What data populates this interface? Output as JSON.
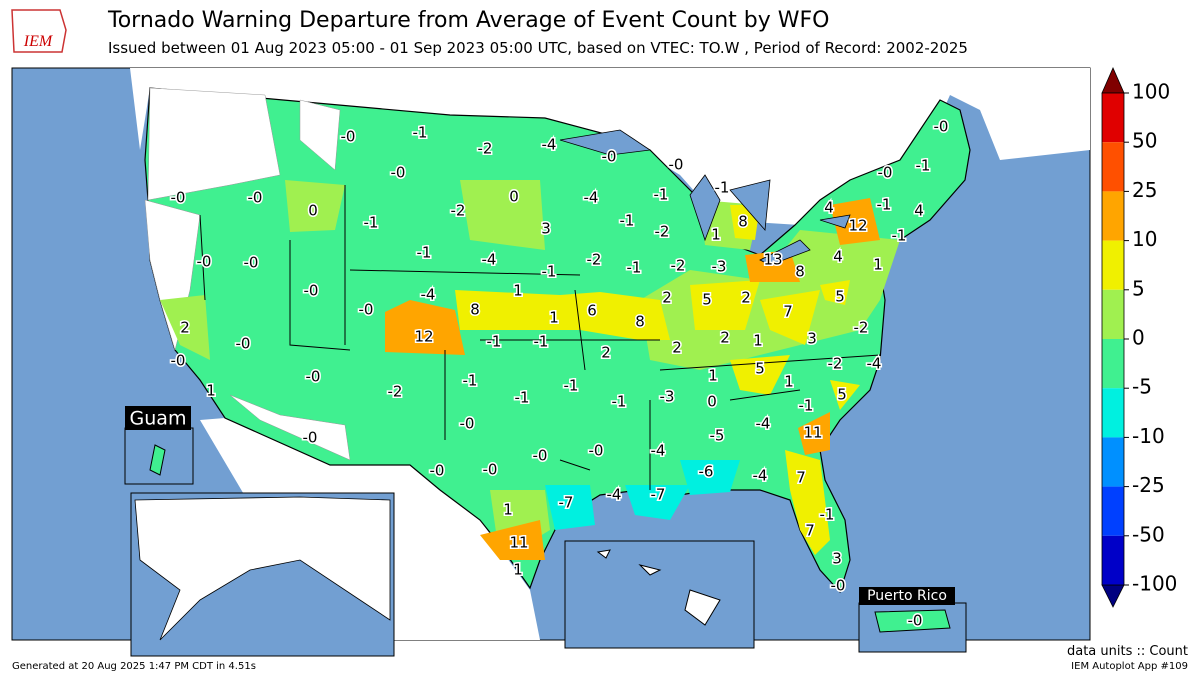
{
  "header": {
    "logo": "IEM",
    "title": "Tornado Warning Departure from Average of Event Count by WFO",
    "subtitle": "Issued between 01 Aug 2023 05:00 - 01 Sep 2023 05:00 UTC, based on VTEC: TO.W  , Period of Record: 2002-2025"
  },
  "insets": {
    "guam": "Guam",
    "puerto_rico": "Puerto Rico"
  },
  "wfo_labels": [
    "-0",
    "-1",
    "-2",
    "-4",
    "-0",
    "-0",
    "-0",
    "-0",
    "-0",
    "-0",
    "0",
    "-1",
    "-2",
    "0",
    "-4",
    "-1",
    "-1",
    "-0",
    "-1",
    "-1",
    "4",
    "12",
    "4",
    "-1",
    "8",
    "1",
    "-1",
    "-2",
    "3",
    "-0",
    "-0",
    "-1",
    "-4",
    "-1",
    "-2",
    "-1",
    "-2",
    "-3",
    "13",
    "8",
    "4",
    "1",
    "-0",
    "1",
    "-4",
    "8",
    "1",
    "-0",
    "12",
    "-1",
    "-1",
    "6",
    "8",
    "2",
    "5",
    "2",
    "7",
    "5",
    "-2",
    "2",
    "-0",
    "-0",
    "1",
    "2",
    "2",
    "2",
    "1",
    "3",
    "-2",
    "-4",
    "-0",
    "-2",
    "-1",
    "-1",
    "-1",
    "1",
    "5",
    "1",
    "5",
    "-3",
    "-1",
    "0",
    "-1",
    "-0",
    "-0",
    "-5",
    "-4",
    "11",
    "-0",
    "-0",
    "-0",
    "-0",
    "-4",
    "-6",
    "-4",
    "7",
    "-7",
    "-4",
    "-7",
    "-1",
    "1",
    "7",
    "11",
    "3",
    "1",
    "-0",
    "-0"
  ],
  "colorbar": {
    "ticks": [
      100,
      50,
      25,
      10,
      5,
      0,
      -5,
      -10,
      -25,
      -50,
      -100
    ],
    "colors": [
      "#e00000",
      "#ff5000",
      "#ffa500",
      "#f0f000",
      "#a0f050",
      "#40f090",
      "#00f0e0",
      "#0090ff",
      "#0040ff",
      "#0000c8"
    ],
    "over_color": "#800000",
    "under_color": "#000080",
    "units": "data units :: Count"
  },
  "footer": {
    "generated": "Generated at 20 Aug 2025 1:47 PM CDT in 4.51s",
    "app": "IEM Autoplot App #109"
  }
}
